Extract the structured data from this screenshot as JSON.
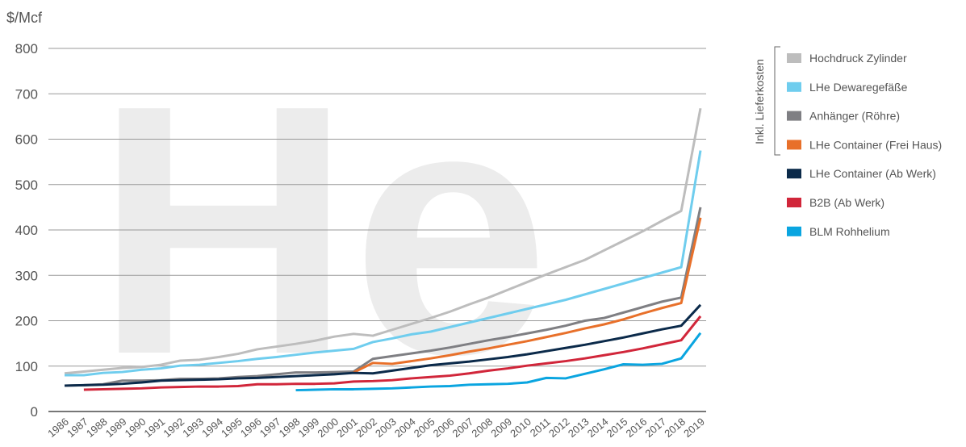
{
  "chart_data": {
    "type": "line",
    "watermark": "He",
    "y_label": "$/Mcf",
    "legend_group_label": "Inkl. Lieferkosten",
    "x": [
      1986,
      1987,
      1988,
      1989,
      1990,
      1991,
      1992,
      1993,
      1994,
      1995,
      1996,
      1997,
      1998,
      1999,
      2000,
      2001,
      2002,
      2003,
      2004,
      2005,
      2006,
      2007,
      2008,
      2009,
      2010,
      2011,
      2012,
      2013,
      2014,
      2015,
      2016,
      2017,
      2018,
      2019
    ],
    "xlim": [
      1986,
      2019
    ],
    "ylim": [
      0,
      800
    ],
    "yticks": [
      0,
      100,
      200,
      300,
      400,
      500,
      600,
      700,
      800
    ],
    "grid": true,
    "legend": "right",
    "series": [
      {
        "name": "Hochdruck Zylinder",
        "color": "#bdbdbd",
        "values": [
          84,
          88,
          92,
          96,
          98,
          103,
          112,
          114,
          120,
          127,
          137,
          143,
          149,
          156,
          165,
          171,
          167,
          180,
          193,
          206,
          220,
          236,
          251,
          268,
          285,
          302,
          318,
          334,
          355,
          376,
          397,
          420,
          442,
          668
        ]
      },
      {
        "name": "LHe Dewaregefäße",
        "color": "#6fcdee",
        "values": [
          80,
          80,
          85,
          87,
          92,
          95,
          101,
          103,
          107,
          111,
          116,
          120,
          125,
          130,
          134,
          138,
          153,
          161,
          170,
          176,
          186,
          196,
          206,
          216,
          226,
          236,
          246,
          258,
          270,
          282,
          294,
          306,
          318,
          575
        ]
      },
      {
        "name": "Anhänger (Röhre)",
        "color": "#7f7f83",
        "values": [
          57,
          58,
          60,
          68,
          68,
          69,
          72,
          72,
          73,
          76,
          78,
          82,
          86,
          86,
          87,
          88,
          116,
          122,
          128,
          134,
          141,
          149,
          157,
          164,
          172,
          180,
          189,
          200,
          206,
          218,
          230,
          242,
          251,
          450
        ]
      },
      {
        "name": "LHe Container (Frei Haus)",
        "color": "#e8702a",
        "values": [
          null,
          null,
          null,
          null,
          null,
          null,
          null,
          null,
          null,
          null,
          null,
          null,
          null,
          null,
          null,
          86,
          107,
          105,
          111,
          117,
          124,
          132,
          139,
          147,
          155,
          164,
          173,
          183,
          192,
          203,
          216,
          228,
          239,
          427
        ]
      },
      {
        "name": "LHe Container (Ab Werk)",
        "color": "#0b2a4a",
        "values": [
          57,
          58,
          59,
          61,
          64,
          68,
          69,
          70,
          71,
          73,
          74,
          76,
          78,
          80,
          82,
          85,
          84,
          90,
          96,
          102,
          106,
          110,
          115,
          120,
          126,
          133,
          140,
          147,
          155,
          163,
          172,
          181,
          189,
          235
        ]
      },
      {
        "name": "B2B (Ab Werk)",
        "color": "#d1263a",
        "values": [
          null,
          48,
          49,
          50,
          51,
          53,
          54,
          55,
          55,
          56,
          60,
          60,
          61,
          61,
          62,
          66,
          67,
          69,
          73,
          76,
          79,
          84,
          90,
          95,
          101,
          106,
          111,
          117,
          124,
          131,
          139,
          148,
          157,
          210
        ]
      },
      {
        "name": "BLM Rohhelium",
        "color": "#0aa5e0",
        "values": [
          null,
          null,
          null,
          null,
          null,
          null,
          null,
          null,
          null,
          null,
          null,
          null,
          47,
          48,
          49,
          49,
          50,
          51,
          53,
          55,
          56,
          59,
          60,
          61,
          64,
          74,
          73,
          83,
          93,
          104,
          103,
          105,
          117,
          173
        ]
      }
    ]
  }
}
